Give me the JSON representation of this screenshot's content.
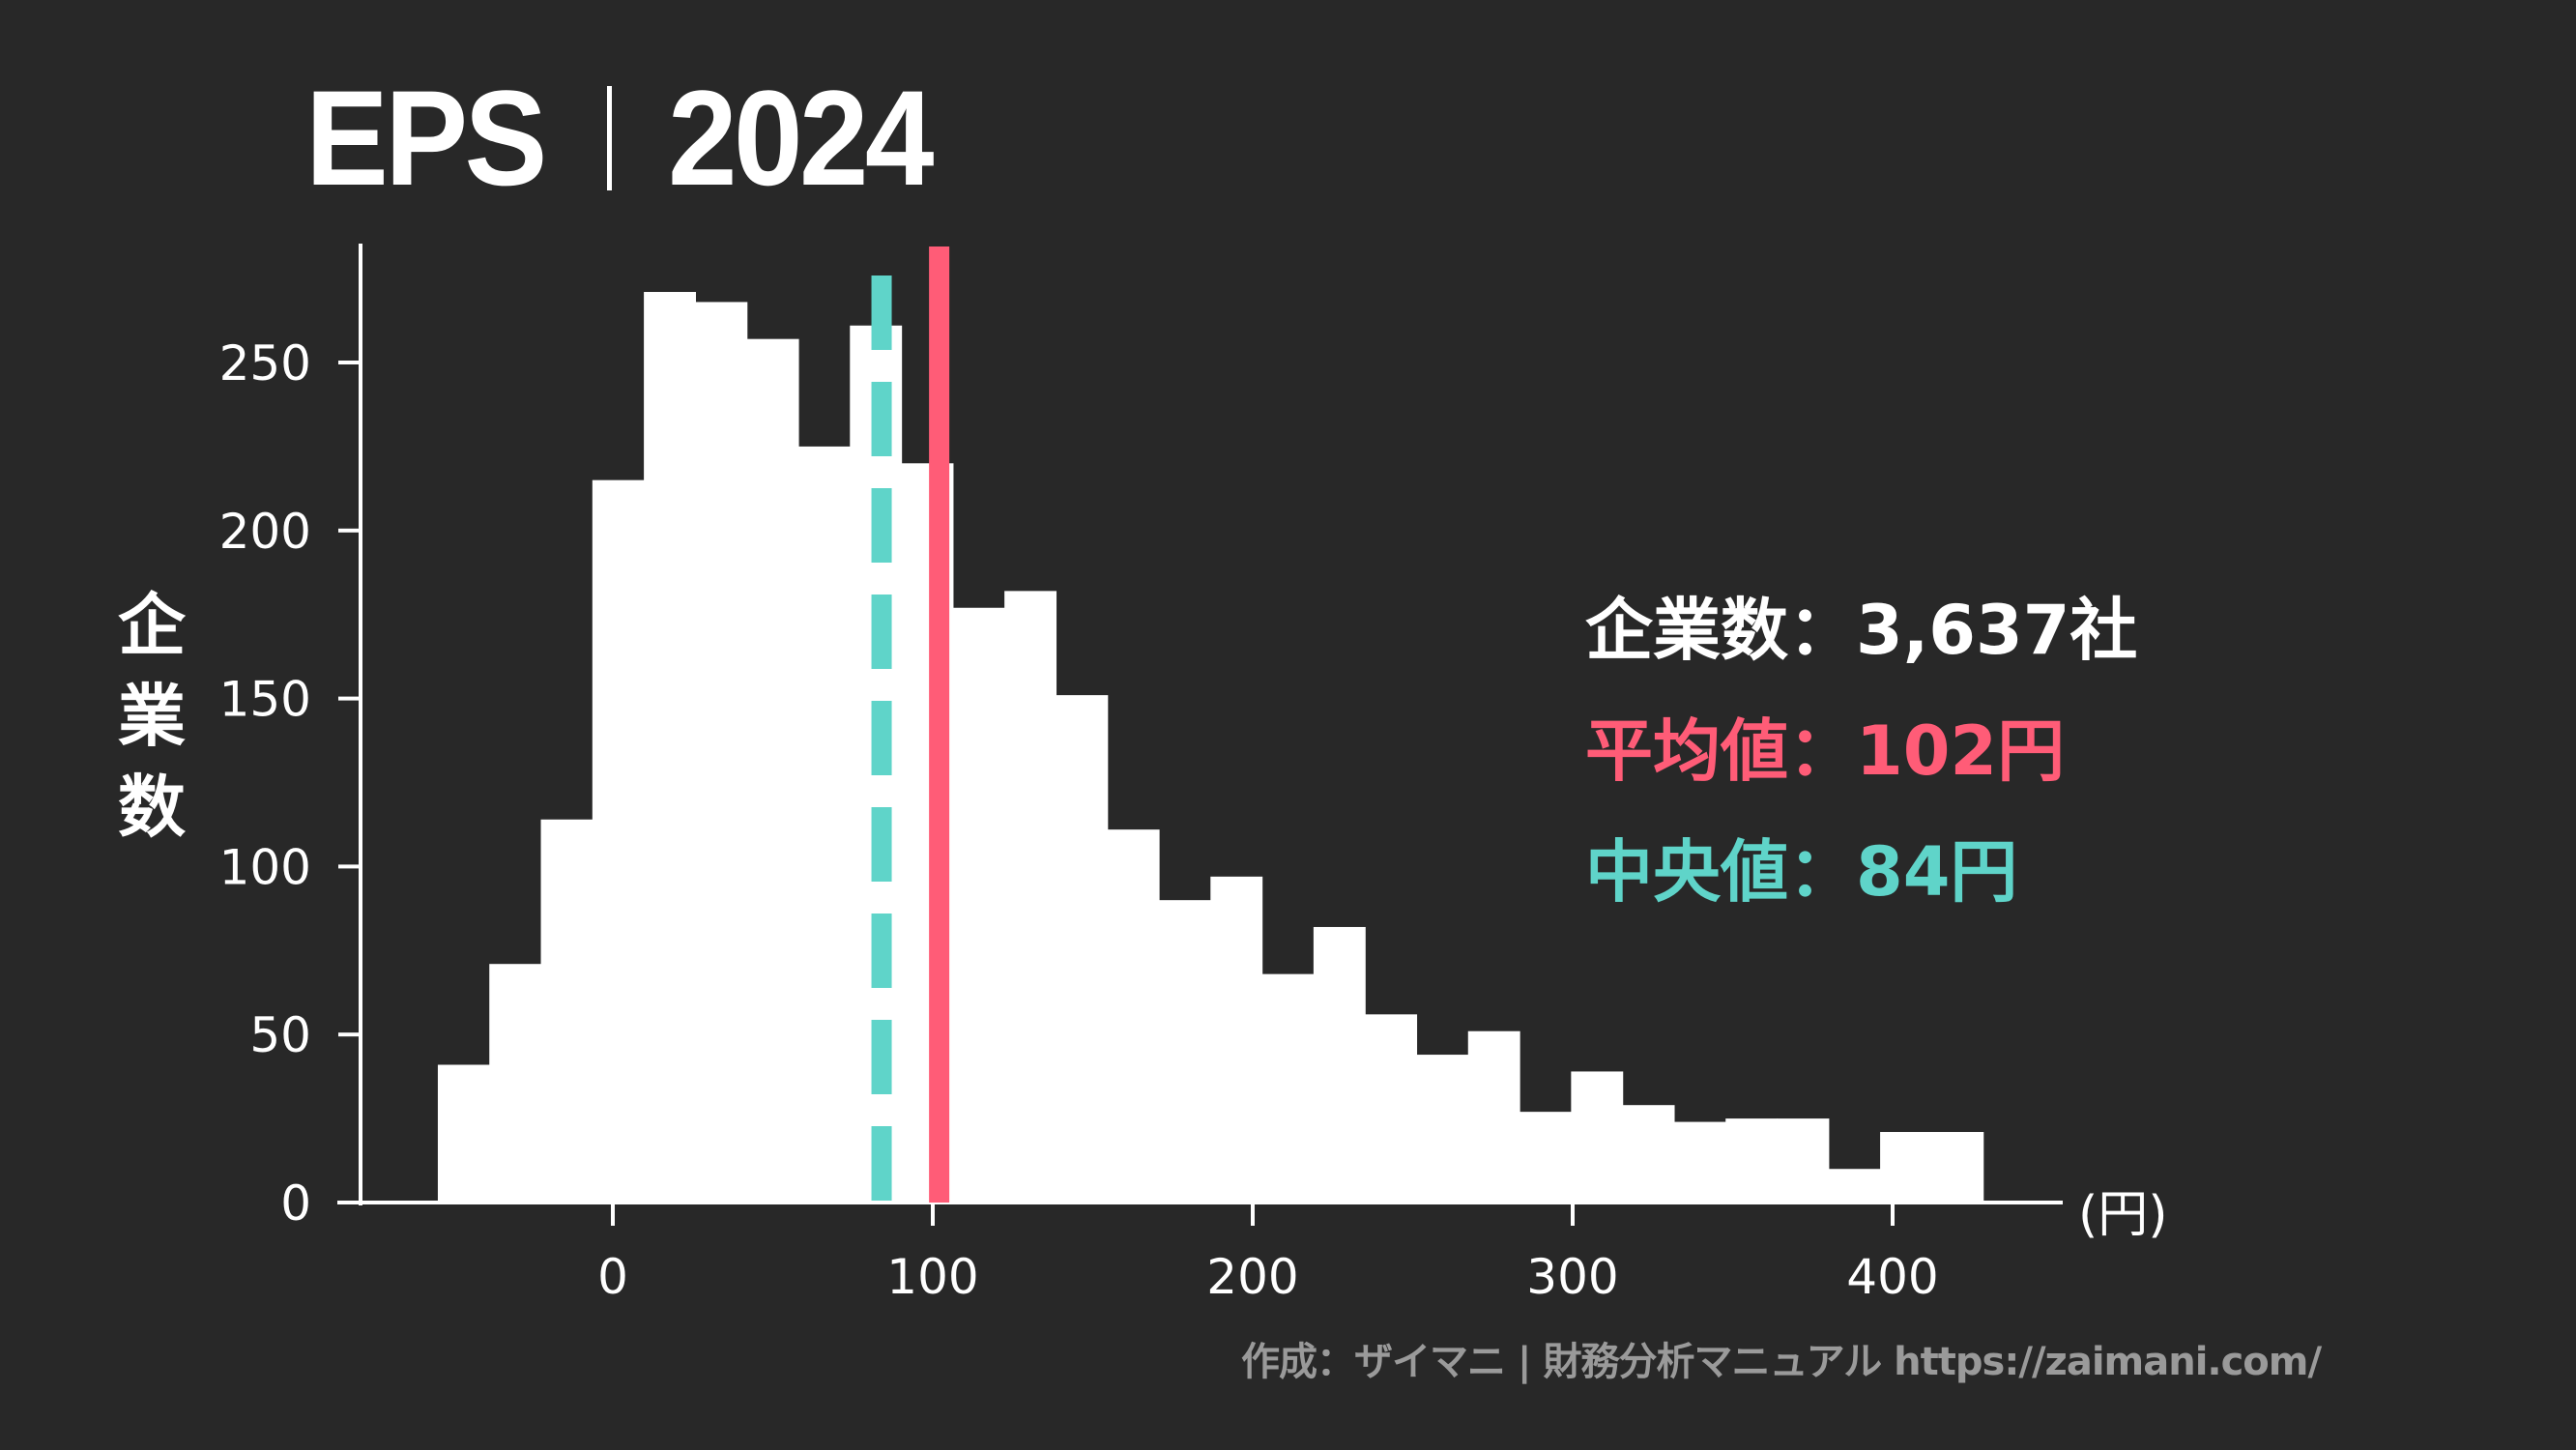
{
  "title": {
    "metric": "EPS",
    "year": "2024"
  },
  "stats": {
    "count_label": "企業数：3,637社",
    "mean_label": "平均値：102円",
    "median_label": "中央値：84円",
    "count_color": "#ffffff",
    "mean_color": "#ff5c77",
    "median_color": "#5fd4c9"
  },
  "axis": {
    "ylabel_chars": [
      "企",
      "業",
      "数"
    ],
    "x_unit": "(円)"
  },
  "footer": {
    "credit": "作成：ザイマニ | 財務分析マニュアル https://zaimani.com/"
  },
  "colors": {
    "background": "#282828",
    "bars": "#ffffff",
    "axis": "#ffffff",
    "mean_line": "#ff5c77",
    "median_line": "#5fd4c9",
    "footer_text": "#9a9a9a"
  },
  "chart_data": {
    "type": "bar",
    "subtype": "histogram",
    "title": "EPS | 2024",
    "xlabel": "(円)",
    "ylabel": "企業数",
    "bin_start": -54.7,
    "bin_width": 16.1,
    "bin_edges_note": "30 contiguous bins from about -55 to 428 円",
    "values": [
      41,
      71,
      114,
      215,
      271,
      268,
      257,
      225,
      261,
      220,
      177,
      182,
      151,
      111,
      90,
      97,
      68,
      82,
      56,
      44,
      51,
      27,
      39,
      29,
      24,
      25,
      25,
      10,
      21,
      21
    ],
    "xlim": [
      -85,
      455
    ],
    "ylim": [
      0,
      285
    ],
    "xticks": [
      0,
      100,
      200,
      300,
      400
    ],
    "yticks": [
      0,
      50,
      100,
      150,
      200,
      250
    ],
    "mean": 102,
    "median": 84,
    "total_companies": 3637,
    "grid": false,
    "annotations": [
      {
        "text": "企業数：3,637社",
        "color": "#ffffff"
      },
      {
        "text": "平均値：102円",
        "color": "#ff5c77",
        "line": "solid vertical at x=102"
      },
      {
        "text": "中央値：84円",
        "color": "#5fd4c9",
        "line": "dashed vertical at x=84"
      }
    ]
  }
}
